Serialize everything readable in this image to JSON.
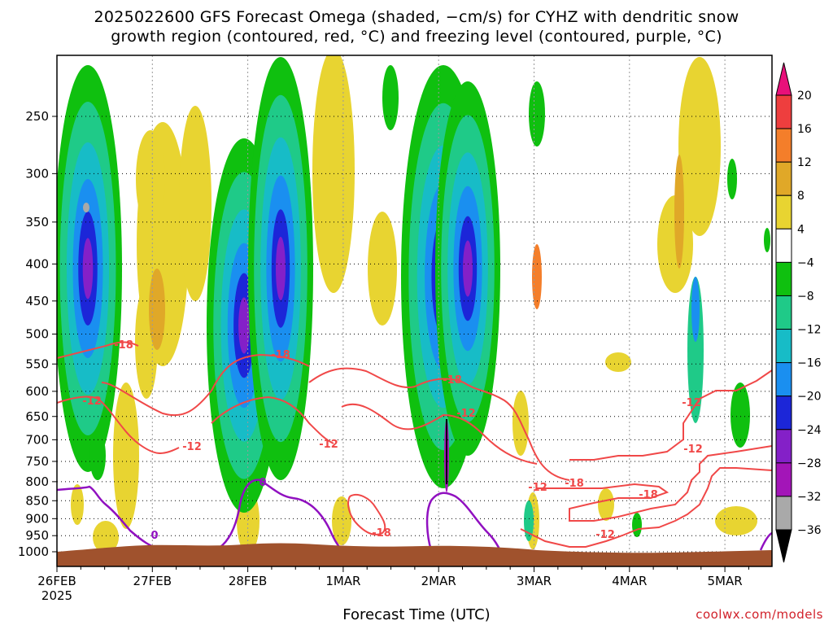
{
  "title_line1": "2025022600 GFS Forecast Omega (shaded, −cm/s) for CYHZ with dendritic snow",
  "title_line2": "growth region (contoured, red, °C) and freezing level (contoured, purple, °C)",
  "xaxis_title": "Forecast Time (UTC)",
  "credit": "coolwx.com/models",
  "chart_data": {
    "type": "heatmap",
    "title": "2025022600 GFS Forecast Omega (shaded, −cm/s) for CYHZ with dendritic snow growth region (contoured, red, °C) and freezing level (contoured, purple, °C)",
    "xlabel": "Forecast Time (UTC)",
    "ylabel": "",
    "x_ticks": [
      "26FEB",
      "27FEB",
      "28FEB",
      "1MAR",
      "2MAR",
      "3MAR",
      "4MAR",
      "5MAR"
    ],
    "x_tick_sub": "2025",
    "y_ticks": [
      250,
      300,
      350,
      400,
      450,
      500,
      550,
      600,
      650,
      700,
      750,
      800,
      850,
      900,
      950,
      1000
    ],
    "grid": true,
    "colorbar_levels": [
      20,
      16,
      12,
      8,
      4,
      -4,
      -8,
      -12,
      -16,
      -20,
      -24,
      -28,
      -32,
      -36
    ],
    "colorbar_colors": [
      "#e8107a",
      "#ee3e3e",
      "#f47e2a",
      "#e0a828",
      "#e8d431",
      "#ffffff",
      "#0fc00f",
      "#1fca88",
      "#17bcc7",
      "#1a8ff0",
      "#1c26d8",
      "#8420c8",
      "#a315b8",
      "#a9a9a9",
      "#000000"
    ],
    "contour_labels_red": [
      "-18",
      "-12",
      "-18",
      "-12",
      "-18",
      "-12",
      "-12",
      "-18",
      "-12",
      "-18",
      "-12",
      "-12",
      "-18",
      "-12"
    ],
    "contour_labels_purple": [
      "0",
      "0"
    ],
    "series": [
      {
        "name": "dendritic snow growth region",
        "values": [
          -12,
          -18
        ],
        "color": "#f04848"
      },
      {
        "name": "freezing level",
        "values": [
          0
        ],
        "color": "#9010c0"
      }
    ]
  }
}
